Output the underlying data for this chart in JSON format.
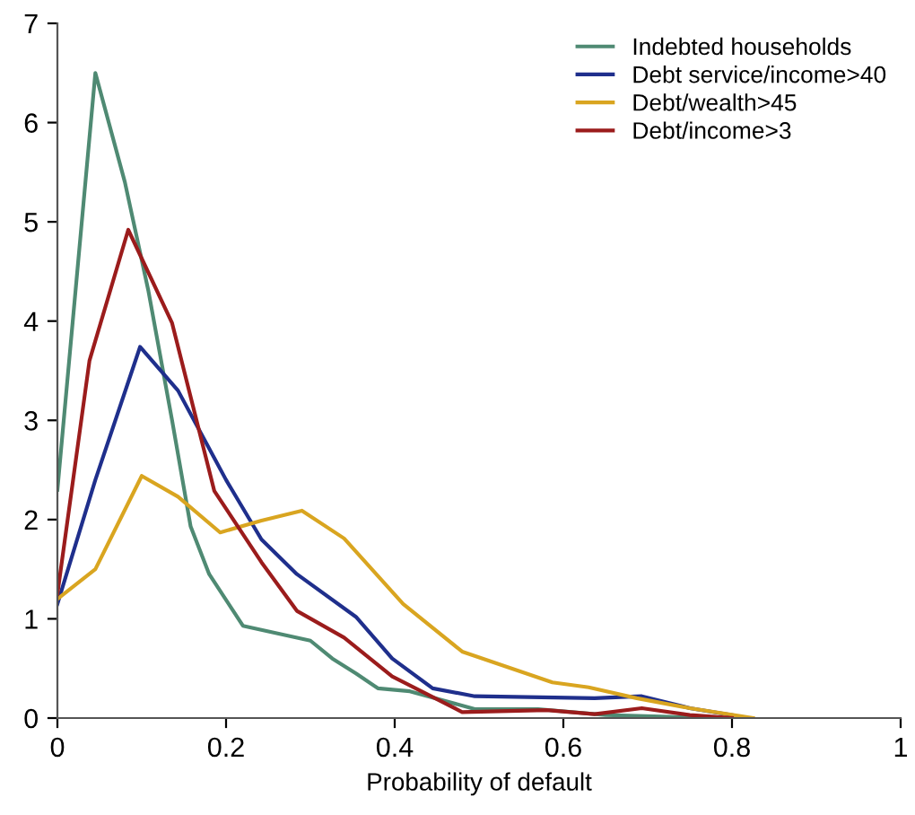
{
  "chart_data": {
    "type": "line",
    "xlabel": "Probability of default",
    "xlim": [
      0,
      1
    ],
    "ylim": [
      0,
      7
    ],
    "xticks": [
      0,
      0.2,
      0.4,
      0.6,
      0.8,
      1
    ],
    "yticks": [
      0,
      1,
      2,
      3,
      4,
      5,
      6,
      7
    ],
    "legend": "top right",
    "grid": false,
    "marker": "none",
    "line_style": "solid",
    "series": [
      {
        "name": "Indebted households",
        "color": "#4f8a73",
        "x": [
          0,
          0.045,
          0.08,
          0.108,
          0.136,
          0.158,
          0.18,
          0.22,
          0.3,
          0.326,
          0.354,
          0.38,
          0.418,
          0.495,
          0.57,
          0.65,
          0.78
        ],
        "values": [
          2.3,
          6.5,
          5.4,
          4.3,
          3.0,
          1.93,
          1.45,
          0.93,
          0.78,
          0.6,
          0.45,
          0.3,
          0.27,
          0.09,
          0.09,
          0.03,
          0.0
        ]
      },
      {
        "name": "Debt service/income>40",
        "color": "#1f2f8c",
        "x": [
          0,
          0.045,
          0.098,
          0.143,
          0.2,
          0.242,
          0.284,
          0.354,
          0.397,
          0.445,
          0.495,
          0.637,
          0.693,
          0.75,
          0.8
        ],
        "values": [
          1.15,
          2.4,
          3.74,
          3.3,
          2.4,
          1.8,
          1.45,
          1.02,
          0.6,
          0.3,
          0.22,
          0.2,
          0.22,
          0.1,
          0.03
        ]
      },
      {
        "name": "Debt/wealth>45",
        "color": "#d9a520",
        "x": [
          0,
          0.045,
          0.1,
          0.143,
          0.193,
          0.242,
          0.29,
          0.34,
          0.41,
          0.48,
          0.587,
          0.63,
          0.687,
          0.75,
          0.825
        ],
        "values": [
          1.2,
          1.5,
          2.44,
          2.23,
          1.87,
          1.99,
          2.09,
          1.81,
          1.15,
          0.67,
          0.36,
          0.31,
          0.2,
          0.1,
          0.0
        ]
      },
      {
        "name": "Debt/income>3",
        "color": "#9b1c1c",
        "x": [
          0,
          0.038,
          0.084,
          0.136,
          0.186,
          0.242,
          0.284,
          0.34,
          0.397,
          0.48,
          0.58,
          0.637,
          0.693,
          0.75,
          0.8
        ],
        "values": [
          1.25,
          3.6,
          4.92,
          3.98,
          2.29,
          1.57,
          1.08,
          0.81,
          0.42,
          0.06,
          0.08,
          0.04,
          0.1,
          0.03,
          0.0
        ]
      }
    ]
  }
}
